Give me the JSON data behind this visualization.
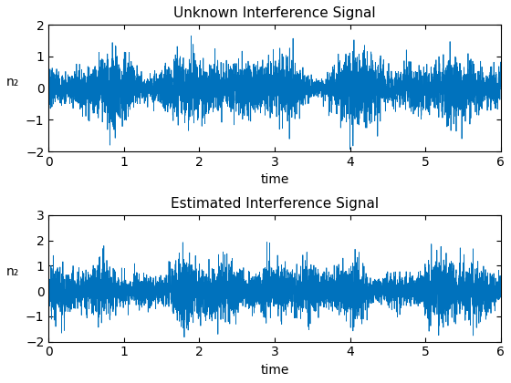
{
  "title1": "Unknown Interference Signal",
  "title2": "Estimated Interference Signal",
  "xlabel": "time",
  "ylabel": "n₂",
  "xlim": [
    0,
    6
  ],
  "ylim1": [
    -2,
    2
  ],
  "ylim2": [
    -2,
    3
  ],
  "xticks": [
    0,
    1,
    2,
    3,
    4,
    5,
    6
  ],
  "yticks1": [
    -2,
    -1,
    0,
    1,
    2
  ],
  "yticks2": [
    -2,
    -1,
    0,
    1,
    2,
    3
  ],
  "line_color": "#0072BD",
  "line_width": 0.6,
  "n_points": 5000,
  "seed1": 7,
  "seed2": 99,
  "fig_width": 5.6,
  "fig_height": 4.2,
  "dpi": 100,
  "title_fontsize": 11,
  "label_fontsize": 10,
  "tick_fontsize": 10,
  "background_color": "#ffffff"
}
